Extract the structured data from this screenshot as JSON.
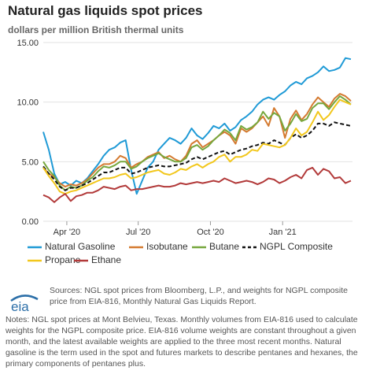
{
  "header": {
    "title": "Natural gas liquids spot prices",
    "subtitle": "dollars per million British thermal units"
  },
  "chart_data": {
    "type": "line",
    "title": "Natural gas liquids spot prices",
    "ylabel": "dollars per million British thermal units",
    "xlabel": "",
    "ylim": [
      0,
      15
    ],
    "yticks": [
      0,
      5,
      10,
      15
    ],
    "ytick_labels": [
      "0.00",
      "5.00",
      "10.00",
      "15.00"
    ],
    "xticks": [
      "2020-04-01",
      "2020-07-01",
      "2020-10-01",
      "2021-01-01"
    ],
    "xtick_labels": [
      "Apr '20",
      "Jul '20",
      "Oct '20",
      "Jan '21"
    ],
    "xlim": [
      "2020-03-02",
      "2021-03-31"
    ],
    "grid": true,
    "legend_position": "bottom",
    "x": [
      "2020-03-02",
      "2020-03-09",
      "2020-03-16",
      "2020-03-23",
      "2020-03-30",
      "2020-04-06",
      "2020-04-13",
      "2020-04-20",
      "2020-04-27",
      "2020-05-04",
      "2020-05-11",
      "2020-05-18",
      "2020-05-25",
      "2020-06-01",
      "2020-06-08",
      "2020-06-15",
      "2020-06-22",
      "2020-06-29",
      "2020-07-06",
      "2020-07-13",
      "2020-07-20",
      "2020-07-27",
      "2020-08-03",
      "2020-08-10",
      "2020-08-17",
      "2020-08-24",
      "2020-08-31",
      "2020-09-07",
      "2020-09-14",
      "2020-09-21",
      "2020-09-28",
      "2020-10-05",
      "2020-10-12",
      "2020-10-19",
      "2020-10-26",
      "2020-11-02",
      "2020-11-09",
      "2020-11-16",
      "2020-11-23",
      "2020-11-30",
      "2020-12-07",
      "2020-12-14",
      "2020-12-21",
      "2020-12-28",
      "2021-01-04",
      "2021-01-11",
      "2021-01-18",
      "2021-01-25",
      "2021-02-01",
      "2021-02-08",
      "2021-02-15",
      "2021-02-22",
      "2021-03-01",
      "2021-03-08",
      "2021-03-15",
      "2021-03-22",
      "2021-03-29"
    ],
    "series": [
      {
        "name": "Natural Gasoline",
        "color": "#1f9ad6",
        "values": [
          7.5,
          6.0,
          4.0,
          3.1,
          3.3,
          3.0,
          3.4,
          3.2,
          3.6,
          4.2,
          4.8,
          5.5,
          6.0,
          6.2,
          6.6,
          6.8,
          4.3,
          2.3,
          3.4,
          4.5,
          5.0,
          6.0,
          6.5,
          7.0,
          6.8,
          6.5,
          7.0,
          7.8,
          7.2,
          6.9,
          7.4,
          8.0,
          7.8,
          8.2,
          7.6,
          7.9,
          8.5,
          8.8,
          9.2,
          9.8,
          10.2,
          10.4,
          10.2,
          10.6,
          10.9,
          11.4,
          11.7,
          11.5,
          12.0,
          12.2,
          12.5,
          13.0,
          12.6,
          12.7,
          12.9,
          13.7,
          13.6
        ]
      },
      {
        "name": "Isobutane",
        "color": "#d47a30",
        "values": [
          4.5,
          4.0,
          3.7,
          3.2,
          2.9,
          3.1,
          3.0,
          3.2,
          3.5,
          4.0,
          4.5,
          4.8,
          4.8,
          5.0,
          5.5,
          5.3,
          4.5,
          4.8,
          5.0,
          5.4,
          5.6,
          5.8,
          5.3,
          5.5,
          5.2,
          5.0,
          5.5,
          6.5,
          6.8,
          6.2,
          6.5,
          6.8,
          7.2,
          7.5,
          7.2,
          6.5,
          7.8,
          7.5,
          7.8,
          8.3,
          8.8,
          8.0,
          9.5,
          8.8,
          7.0,
          8.6,
          9.3,
          8.5,
          9.0,
          9.8,
          10.4,
          10.0,
          9.6,
          10.3,
          10.7,
          10.5,
          10.1
        ]
      },
      {
        "name": "Butane",
        "color": "#76a73d",
        "values": [
          5.0,
          4.3,
          3.8,
          3.0,
          2.6,
          2.9,
          2.8,
          3.0,
          3.4,
          3.7,
          4.2,
          4.6,
          4.5,
          4.7,
          5.0,
          5.0,
          4.4,
          4.6,
          5.0,
          5.3,
          5.5,
          5.7,
          5.4,
          5.2,
          5.0,
          5.0,
          5.3,
          6.2,
          6.4,
          6.0,
          6.3,
          6.8,
          7.2,
          7.7,
          7.4,
          6.8,
          8.0,
          7.7,
          7.9,
          8.3,
          9.2,
          8.6,
          9.1,
          8.8,
          7.6,
          8.2,
          9.0,
          8.4,
          8.6,
          9.5,
          9.9,
          9.9,
          9.4,
          10.0,
          10.5,
          10.2,
          9.8
        ]
      },
      {
        "name": "NGPL Composite",
        "color": "#111111",
        "dashed": true,
        "values": [
          4.6,
          4.0,
          3.5,
          2.9,
          2.6,
          2.8,
          2.8,
          3.0,
          3.2,
          3.5,
          3.8,
          4.1,
          4.1,
          4.3,
          4.5,
          4.5,
          4.0,
          4.1,
          4.3,
          4.5,
          4.6,
          4.7,
          4.6,
          4.6,
          4.7,
          4.8,
          4.9,
          5.2,
          5.4,
          5.2,
          5.4,
          5.6,
          5.8,
          5.9,
          5.6,
          5.8,
          6.0,
          6.1,
          6.3,
          6.4,
          6.6,
          6.5,
          6.8,
          6.6,
          6.4,
          7.0,
          7.3,
          7.0,
          7.2,
          7.6,
          8.2,
          8.2,
          8.0,
          8.3,
          8.2,
          8.1,
          8.0
        ]
      },
      {
        "name": "Propane",
        "color": "#f2c71c",
        "values": [
          4.5,
          3.8,
          3.2,
          2.5,
          2.3,
          2.5,
          2.6,
          2.8,
          3.0,
          3.2,
          3.4,
          3.6,
          3.6,
          3.7,
          3.9,
          4.0,
          3.6,
          3.7,
          3.9,
          4.1,
          4.2,
          4.3,
          4.0,
          3.9,
          4.1,
          4.4,
          4.3,
          4.6,
          4.8,
          4.5,
          4.8,
          5.0,
          5.4,
          5.6,
          5.0,
          5.4,
          5.4,
          5.6,
          6.0,
          5.9,
          6.5,
          6.4,
          6.3,
          6.2,
          6.4,
          7.0,
          7.8,
          7.2,
          7.5,
          8.3,
          9.2,
          8.5,
          8.9,
          9.6,
          10.2,
          10.0,
          9.8
        ]
      },
      {
        "name": "Ethane",
        "color": "#b23a3a",
        "values": [
          2.2,
          2.0,
          1.6,
          2.0,
          2.3,
          1.7,
          2.1,
          2.2,
          2.4,
          2.4,
          2.6,
          2.9,
          2.8,
          2.7,
          2.9,
          3.0,
          2.6,
          2.7,
          2.7,
          2.8,
          2.9,
          3.0,
          2.9,
          2.9,
          3.0,
          3.2,
          3.1,
          3.2,
          3.3,
          3.2,
          3.3,
          3.4,
          3.3,
          3.6,
          3.4,
          3.2,
          3.3,
          3.4,
          3.3,
          3.1,
          3.3,
          3.6,
          3.5,
          3.2,
          3.4,
          3.7,
          3.9,
          3.6,
          4.3,
          4.5,
          3.9,
          4.4,
          4.2,
          3.6,
          3.7,
          3.2,
          3.4
        ]
      }
    ]
  },
  "legend": {
    "items": [
      {
        "name": "Natural Gasoline",
        "color": "#1f9ad6",
        "dashed": false
      },
      {
        "name": "Isobutane",
        "color": "#d47a30",
        "dashed": false
      },
      {
        "name": "Butane",
        "color": "#76a73d",
        "dashed": false
      },
      {
        "name": "NGPL Composite",
        "color": "#111111",
        "dashed": true
      },
      {
        "name": "Propane",
        "color": "#f2c71c",
        "dashed": false
      },
      {
        "name": "Ethane",
        "color": "#b23a3a",
        "dashed": false
      }
    ]
  },
  "footer": {
    "logo_text": "eia",
    "sources": "Sources: NGL spot prices from Bloomberg, L.P., and weights for NGPL composite price from EIA-816, Monthly Natural Gas Liquids Report.",
    "notes": "Notes: NGL spot prices at Mont Belvieu, Texas. Monthly volumes from EIA-816 used to calculate weights for the NGPL composite price. EIA-816 volume weights are constant throughout a given month, and the latest available weights are applied to the three most recent months. Natural gasoline is the term used in the spot and futures markets to describe pentanes and hexanes, the primary components of pentanes plus."
  },
  "colors": {
    "grid": "#e2e2e2",
    "axis_text": "#333333",
    "footer_text": "#555555",
    "logo_blue": "#2c6fa8"
  }
}
